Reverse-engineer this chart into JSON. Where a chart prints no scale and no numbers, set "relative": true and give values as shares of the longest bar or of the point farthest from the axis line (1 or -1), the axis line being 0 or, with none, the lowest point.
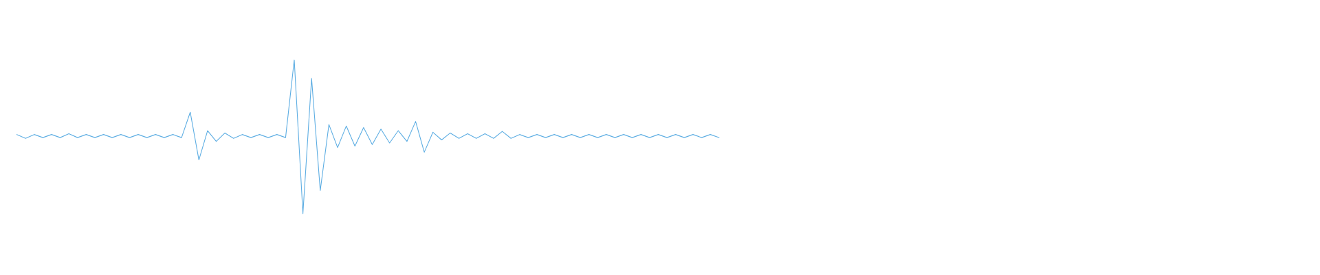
{
  "chart_data": {
    "type": "line",
    "relative": true,
    "grid": false,
    "marker": "none",
    "line_style": "solid",
    "categories": [
      null,
      null,
      null,
      null,
      null,
      null,
      null,
      null,
      null,
      null,
      null,
      null,
      null,
      null,
      null,
      null,
      null,
      null,
      null,
      null,
      null,
      null,
      null,
      null,
      null,
      null,
      null,
      null,
      null,
      null,
      null,
      null,
      null,
      null,
      null,
      null,
      null,
      null,
      null,
      null,
      null,
      null,
      null,
      null,
      null,
      null,
      null,
      null,
      null,
      null,
      null,
      null,
      null,
      null,
      null,
      null,
      null,
      null,
      null,
      null,
      null,
      null,
      null,
      null,
      null,
      null,
      null,
      null,
      null,
      null,
      null,
      null,
      null,
      null,
      null,
      null,
      null,
      null,
      null,
      null,
      null,
      null,
      null,
      null,
      null,
      null,
      null,
      null,
      null,
      null,
      null,
      null,
      null,
      null,
      null,
      null,
      null,
      null,
      null,
      null,
      null,
      null,
      null,
      null,
      null,
      null,
      null,
      null,
      null,
      null,
      null,
      null,
      null,
      null,
      null,
      null,
      null,
      null,
      null,
      null,
      null,
      null,
      null,
      null,
      null,
      null,
      null,
      null,
      null,
      null,
      null,
      null,
      null,
      null,
      null,
      null,
      null,
      null,
      null,
      null,
      null,
      null,
      null,
      null,
      null,
      null,
      null,
      null,
      null,
      null
    ],
    "series": [
      {
        "color": "#5eaee3",
        "values": [
          0.515,
          0.49,
          0.515,
          0.495,
          0.515,
          0.495,
          0.52,
          0.495,
          0.515,
          0.495,
          0.515,
          0.495,
          0.515,
          0.495,
          0.515,
          0.495,
          0.515,
          0.495,
          0.515,
          0.495,
          0.66,
          0.35,
          0.54,
          0.47,
          0.525,
          0.49,
          0.515,
          0.495,
          0.515,
          0.495,
          0.515,
          0.495,
          1.0,
          0.0,
          0.88,
          0.15,
          0.58,
          0.43,
          0.57,
          0.44,
          0.56,
          0.45,
          0.55,
          0.46,
          0.54,
          0.47,
          0.6,
          0.4,
          0.53,
          0.48,
          0.525,
          0.49,
          0.52,
          0.49,
          0.52,
          0.49,
          0.535,
          0.49,
          0.515,
          0.495,
          0.515,
          0.495,
          0.515,
          0.495,
          0.515,
          0.495,
          0.515,
          0.495,
          0.515,
          0.495,
          0.515,
          0.495,
          0.515,
          0.495,
          0.515,
          0.495,
          0.515,
          0.495,
          0.515,
          0.495,
          0.515,
          0.495,
          null,
          null,
          null,
          null,
          null,
          null,
          null,
          null,
          null,
          null,
          null,
          null,
          null,
          null,
          null,
          null,
          null,
          null,
          null,
          null,
          null,
          null,
          null,
          null,
          null,
          null,
          null,
          null,
          null,
          null,
          null,
          null,
          null,
          null,
          null,
          null,
          null,
          null,
          null,
          null,
          null,
          null,
          null,
          null,
          null,
          null,
          null,
          null,
          null,
          null,
          null,
          null,
          null,
          null,
          null,
          null,
          null,
          null,
          null,
          null,
          null,
          null,
          null,
          null,
          null,
          null,
          null,
          null
        ]
      }
    ]
  }
}
